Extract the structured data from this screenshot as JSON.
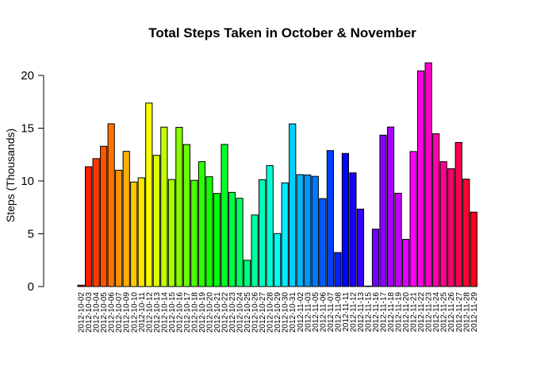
{
  "chart_data": {
    "type": "bar",
    "title": "Total Steps Taken in October & November",
    "xlabel": "",
    "ylabel": "Steps (Thousands)",
    "ylim": [
      0,
      22
    ],
    "yticks": [
      0,
      5,
      10,
      15,
      20
    ],
    "grid": false,
    "legend": "none",
    "categories": [
      "2012-10-02",
      "2012-10-03",
      "2012-10-04",
      "2012-10-05",
      "2012-10-06",
      "2012-10-07",
      "2012-10-09",
      "2012-10-10",
      "2012-10-11",
      "2012-10-12",
      "2012-10-13",
      "2012-10-14",
      "2012-10-15",
      "2012-10-16",
      "2012-10-17",
      "2012-10-18",
      "2012-10-19",
      "2012-10-20",
      "2012-10-21",
      "2012-10-22",
      "2012-10-23",
      "2012-10-24",
      "2012-10-25",
      "2012-10-26",
      "2012-10-27",
      "2012-10-28",
      "2012-10-29",
      "2012-10-30",
      "2012-10-31",
      "2012-11-02",
      "2012-11-03",
      "2012-11-05",
      "2012-11-06",
      "2012-11-07",
      "2012-11-08",
      "2012-11-11",
      "2012-11-12",
      "2012-11-13",
      "2012-11-15",
      "2012-11-16",
      "2012-11-17",
      "2012-11-18",
      "2012-11-19",
      "2012-11-20",
      "2012-11-21",
      "2012-11-22",
      "2012-11-23",
      "2012-11-24",
      "2012-11-25",
      "2012-11-26",
      "2012-11-27",
      "2012-11-28",
      "2012-11-29"
    ],
    "values": [
      0.13,
      11.35,
      12.12,
      13.29,
      15.42,
      11.02,
      12.81,
      9.9,
      10.3,
      17.38,
      12.43,
      15.1,
      10.14,
      15.08,
      13.45,
      10.06,
      11.83,
      10.4,
      8.82,
      13.46,
      8.92,
      8.36,
      2.49,
      6.78,
      10.12,
      11.46,
      5.02,
      9.82,
      15.41,
      10.6,
      10.57,
      10.44,
      8.33,
      12.88,
      3.22,
      12.61,
      10.77,
      7.34,
      0.04,
      5.44,
      14.34,
      15.11,
      8.84,
      4.47,
      12.79,
      20.43,
      21.19,
      14.48,
      11.83,
      11.16,
      13.65,
      10.18,
      7.05
    ],
    "colors": [
      "#ff0000",
      "#ff1d00",
      "#ff3a00",
      "#ff5700",
      "#ff7400",
      "#ff9100",
      "#ffae00",
      "#ffcb00",
      "#ffe800",
      "#f9ff00",
      "#dcff00",
      "#bfff00",
      "#a2ff00",
      "#85ff00",
      "#68ff00",
      "#4bff00",
      "#2eff00",
      "#11ff00",
      "#00ff0c",
      "#00ff29",
      "#00ff46",
      "#00ff63",
      "#00ff80",
      "#00ff9d",
      "#00ffba",
      "#00ffd7",
      "#00fff4",
      "#00eeff",
      "#00d1ff",
      "#00b4ff",
      "#0097ff",
      "#007aff",
      "#005dff",
      "#0040ff",
      "#0023ff",
      "#0006ff",
      "#1700ff",
      "#3400ff",
      "#5100ff",
      "#6e00ff",
      "#8b00ff",
      "#a800ff",
      "#c500ff",
      "#e200ff",
      "#ff00ff",
      "#ff00e2",
      "#ff00c5",
      "#ff00a8",
      "#ff008b",
      "#ff006e",
      "#ff0051",
      "#ff0034",
      "#ff0017"
    ]
  }
}
